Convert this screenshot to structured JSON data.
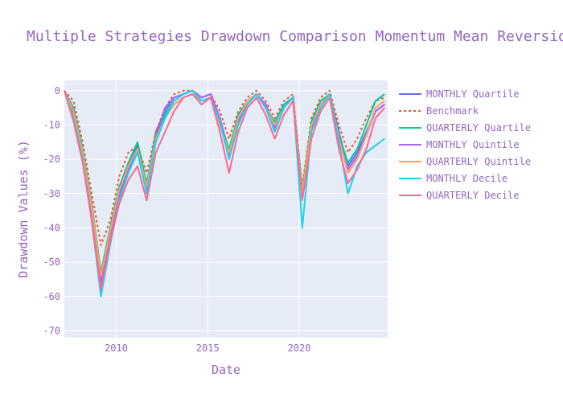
{
  "chart_data": {
    "type": "line",
    "title": "Multiple Strategies Drawdown Comparison Momentum Mean Reversion",
    "xlabel": "Date",
    "ylabel": "Drawdown Values (%)",
    "xlim": [
      "2007-03-01",
      "2024-11-30"
    ],
    "ylim": [
      -72,
      3
    ],
    "x_ticks": [
      "2010",
      "2015",
      "2020"
    ],
    "y_ticks": [
      0,
      -10,
      -20,
      -30,
      -40,
      -50,
      -60,
      -70
    ],
    "grid": true,
    "legend_position": "top-right outside",
    "x": [
      "2007-03",
      "2007-09",
      "2008-03",
      "2008-09",
      "2009-03",
      "2009-09",
      "2010-03",
      "2010-09",
      "2011-03",
      "2011-09",
      "2012-03",
      "2012-09",
      "2013-03",
      "2013-09",
      "2014-03",
      "2014-09",
      "2015-03",
      "2015-09",
      "2016-03",
      "2016-09",
      "2017-03",
      "2017-09",
      "2018-03",
      "2018-09",
      "2019-03",
      "2019-09",
      "2020-03",
      "2020-09",
      "2021-03",
      "2021-09",
      "2022-03",
      "2022-09",
      "2023-03",
      "2023-09",
      "2024-03",
      "2024-09"
    ],
    "series": [
      {
        "name": "MONTHLY Quartile",
        "color": "#636efa",
        "dash": "solid",
        "values": [
          0,
          -6,
          -18,
          -35,
          -55,
          -42,
          -30,
          -22,
          -16,
          -28,
          -12,
          -6,
          -2,
          -1,
          0,
          -2,
          -1,
          -8,
          -18,
          -8,
          -3,
          -1,
          -4,
          -10,
          -4,
          -2,
          -30,
          -10,
          -4,
          -1,
          -12,
          -22,
          -18,
          -12,
          -6,
          -4
        ]
      },
      {
        "name": "Benchmark",
        "color": "#ef553b",
        "dash": "dot",
        "values": [
          0,
          -3,
          -15,
          -30,
          -45,
          -38,
          -25,
          -18,
          -16,
          -24,
          -12,
          -5,
          -1,
          0,
          0,
          -2,
          -1,
          -6,
          -14,
          -6,
          -2,
          0,
          -3,
          -8,
          -3,
          -1,
          -28,
          -8,
          -2,
          0,
          -10,
          -18,
          -14,
          -8,
          -3,
          -2
        ]
      },
      {
        "name": "QUARTERLY Quartile",
        "color": "#00cc96",
        "dash": "solid",
        "values": [
          0,
          -5,
          -17,
          -33,
          -53,
          -40,
          -28,
          -21,
          -15,
          -27,
          -13,
          -7,
          -3,
          -1,
          0,
          -3,
          -2,
          -9,
          -17,
          -7,
          -3,
          -1,
          -5,
          -9,
          -4,
          -2,
          -29,
          -9,
          -3,
          -1,
          -13,
          -21,
          -17,
          -10,
          -3,
          -1
        ]
      },
      {
        "name": "MONTHLY Quintile",
        "color": "#ab63fa",
        "dash": "solid",
        "values": [
          0,
          -7,
          -19,
          -36,
          -56,
          -43,
          -31,
          -23,
          -17,
          -29,
          -14,
          -5,
          -2,
          -1,
          0,
          -2,
          -1,
          -8,
          -19,
          -9,
          -4,
          -1,
          -4,
          -11,
          -5,
          -2,
          -31,
          -11,
          -4,
          -1,
          -14,
          -23,
          -19,
          -13,
          -6,
          -4
        ]
      },
      {
        "name": "QUARTERLY Quintile",
        "color": "#ffa15a",
        "dash": "solid",
        "values": [
          0,
          -6,
          -18,
          -34,
          -54,
          -41,
          -29,
          -22,
          -17,
          -28,
          -14,
          -8,
          -4,
          -2,
          -1,
          -3,
          -2,
          -10,
          -18,
          -8,
          -3,
          -1,
          -5,
          -10,
          -5,
          -2,
          -30,
          -10,
          -4,
          -1,
          -14,
          -24,
          -20,
          -13,
          -5,
          -3
        ]
      },
      {
        "name": "MONTHLY Decile",
        "color": "#19d3f3",
        "dash": "solid",
        "values": [
          0,
          -8,
          -20,
          -38,
          -60,
          -45,
          -32,
          -24,
          -18,
          -30,
          -15,
          -8,
          -3,
          -1,
          0,
          -3,
          -2,
          -9,
          -20,
          -10,
          -4,
          -1,
          -5,
          -12,
          -5,
          -2,
          -40,
          -12,
          -5,
          -1,
          -15,
          -30,
          -22,
          -18,
          -16,
          -14
        ]
      },
      {
        "name": "QUARTERLY Decile",
        "color": "#ff6692",
        "dash": "solid",
        "values": [
          0,
          -9,
          -21,
          -38,
          -58,
          -44,
          -33,
          -26,
          -22,
          -32,
          -18,
          -12,
          -6,
          -2,
          -1,
          -4,
          -2,
          -12,
          -24,
          -12,
          -5,
          -2,
          -7,
          -14,
          -7,
          -3,
          -32,
          -14,
          -6,
          -2,
          -17,
          -27,
          -23,
          -17,
          -8,
          -5
        ]
      }
    ]
  }
}
